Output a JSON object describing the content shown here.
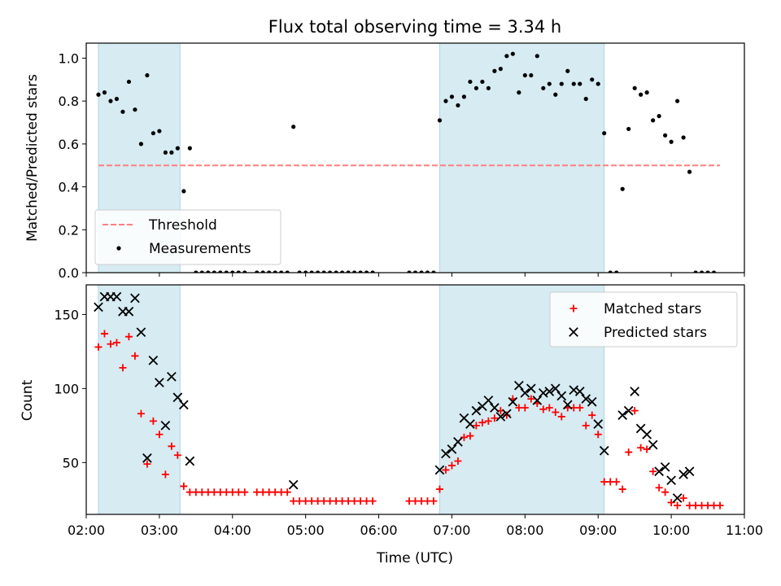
{
  "chart_data": [
    {
      "type": "scatter",
      "title": "Flux total observing time = 3.34 h",
      "xlabel": "",
      "ylabel": "Matched/Predicted stars",
      "xlim": [
        "02:00",
        "11:00"
      ],
      "ylim": [
        0,
        1.07
      ],
      "yticks": [
        0.0,
        0.2,
        0.4,
        0.6,
        0.8,
        1.0
      ],
      "ytick_labels": [
        "0.0",
        "0.2",
        "0.4",
        "0.6",
        "0.8",
        "1.0"
      ],
      "shaded_intervals": [
        [
          "02:10",
          "03:17"
        ],
        [
          "06:50",
          "09:05"
        ]
      ],
      "threshold": {
        "name": "Threshold",
        "y": 0.5,
        "x_range": [
          "02:10",
          "10:40"
        ],
        "color": "#ff7f7f"
      },
      "series": [
        {
          "name": "Measurements",
          "marker": "dot",
          "color": "#000000",
          "points": [
            [
              "02:10",
              0.83
            ],
            [
              "02:15",
              0.84
            ],
            [
              "02:20",
              0.8
            ],
            [
              "02:25",
              0.81
            ],
            [
              "02:30",
              0.75
            ],
            [
              "02:35",
              0.89
            ],
            [
              "02:40",
              0.76
            ],
            [
              "02:45",
              0.6
            ],
            [
              "02:50",
              0.92
            ],
            [
              "02:55",
              0.65
            ],
            [
              "03:00",
              0.66
            ],
            [
              "03:05",
              0.56
            ],
            [
              "03:10",
              0.56
            ],
            [
              "03:15",
              0.58
            ],
            [
              "03:20",
              0.38
            ],
            [
              "03:25",
              0.58
            ],
            [
              "03:30",
              0.0
            ],
            [
              "03:35",
              0.0
            ],
            [
              "03:40",
              0.0
            ],
            [
              "03:45",
              0.0
            ],
            [
              "03:50",
              0.0
            ],
            [
              "03:55",
              0.0
            ],
            [
              "04:00",
              0.0
            ],
            [
              "04:05",
              0.0
            ],
            [
              "04:10",
              0.0
            ],
            [
              "04:20",
              0.0
            ],
            [
              "04:25",
              0.0
            ],
            [
              "04:30",
              0.0
            ],
            [
              "04:35",
              0.0
            ],
            [
              "04:40",
              0.0
            ],
            [
              "04:45",
              0.0
            ],
            [
              "04:50",
              0.68
            ],
            [
              "04:55",
              0.0
            ],
            [
              "05:00",
              0.0
            ],
            [
              "05:05",
              0.0
            ],
            [
              "05:10",
              0.0
            ],
            [
              "05:15",
              0.0
            ],
            [
              "05:20",
              0.0
            ],
            [
              "05:25",
              0.0
            ],
            [
              "05:30",
              0.0
            ],
            [
              "05:35",
              0.0
            ],
            [
              "05:40",
              0.0
            ],
            [
              "05:45",
              0.0
            ],
            [
              "05:50",
              0.0
            ],
            [
              "05:55",
              0.0
            ],
            [
              "06:25",
              0.0
            ],
            [
              "06:30",
              0.0
            ],
            [
              "06:35",
              0.0
            ],
            [
              "06:40",
              0.0
            ],
            [
              "06:45",
              0.0
            ],
            [
              "06:50",
              0.71
            ],
            [
              "06:55",
              0.8
            ],
            [
              "07:00",
              0.82
            ],
            [
              "07:05",
              0.78
            ],
            [
              "07:10",
              0.82
            ],
            [
              "07:15",
              0.89
            ],
            [
              "07:20",
              0.86
            ],
            [
              "07:25",
              0.89
            ],
            [
              "07:30",
              0.86
            ],
            [
              "07:35",
              0.94
            ],
            [
              "07:40",
              0.95
            ],
            [
              "07:45",
              1.01
            ],
            [
              "07:50",
              1.02
            ],
            [
              "07:55",
              0.84
            ],
            [
              "08:00",
              0.92
            ],
            [
              "08:05",
              0.92
            ],
            [
              "08:10",
              1.01
            ],
            [
              "08:15",
              0.86
            ],
            [
              "08:20",
              0.88
            ],
            [
              "08:25",
              0.83
            ],
            [
              "08:30",
              0.88
            ],
            [
              "08:35",
              0.94
            ],
            [
              "08:40",
              0.88
            ],
            [
              "08:45",
              0.88
            ],
            [
              "08:50",
              0.81
            ],
            [
              "08:55",
              0.9
            ],
            [
              "09:00",
              0.88
            ],
            [
              "09:05",
              0.65
            ],
            [
              "09:10",
              0.0
            ],
            [
              "09:15",
              0.0
            ],
            [
              "09:20",
              0.39
            ],
            [
              "09:25",
              0.67
            ],
            [
              "09:30",
              0.86
            ],
            [
              "09:35",
              0.83
            ],
            [
              "09:40",
              0.84
            ],
            [
              "09:45",
              0.71
            ],
            [
              "09:50",
              0.73
            ],
            [
              "09:55",
              0.64
            ],
            [
              "10:00",
              0.61
            ],
            [
              "10:05",
              0.8
            ],
            [
              "10:10",
              0.63
            ],
            [
              "10:15",
              0.47
            ],
            [
              "10:20",
              0.0
            ],
            [
              "10:25",
              0.0
            ],
            [
              "10:30",
              0.0
            ],
            [
              "10:35",
              0.0
            ]
          ]
        }
      ],
      "legend": {
        "position": "lower-left",
        "entries": [
          "Threshold",
          "Measurements"
        ]
      }
    },
    {
      "type": "scatter",
      "title": "",
      "xlabel": "Time (UTC)",
      "ylabel": "Count",
      "xlim": [
        "02:00",
        "11:00"
      ],
      "ylim": [
        15,
        170
      ],
      "xticks": [
        "02:00",
        "03:00",
        "04:00",
        "05:00",
        "06:00",
        "07:00",
        "08:00",
        "09:00",
        "10:00",
        "11:00"
      ],
      "yticks": [
        50,
        100,
        150
      ],
      "ytick_labels": [
        "50",
        "100",
        "150"
      ],
      "shaded_intervals": [
        [
          "02:10",
          "03:17"
        ],
        [
          "06:50",
          "09:05"
        ]
      ],
      "series": [
        {
          "name": "Matched stars",
          "marker": "plus",
          "color": "#ff0000",
          "points": [
            [
              "02:10",
              128
            ],
            [
              "02:15",
              137
            ],
            [
              "02:20",
              130
            ],
            [
              "02:25",
              131
            ],
            [
              "02:30",
              114
            ],
            [
              "02:35",
              135
            ],
            [
              "02:40",
              122
            ],
            [
              "02:45",
              83
            ],
            [
              "02:50",
              49
            ],
            [
              "02:55",
              78
            ],
            [
              "03:00",
              69
            ],
            [
              "03:05",
              42
            ],
            [
              "03:10",
              61
            ],
            [
              "03:15",
              55
            ],
            [
              "03:20",
              34
            ],
            [
              "03:25",
              30
            ],
            [
              "03:30",
              30
            ],
            [
              "03:35",
              30
            ],
            [
              "03:40",
              30
            ],
            [
              "03:45",
              30
            ],
            [
              "03:50",
              30
            ],
            [
              "03:55",
              30
            ],
            [
              "04:00",
              30
            ],
            [
              "04:05",
              30
            ],
            [
              "04:10",
              30
            ],
            [
              "04:20",
              30
            ],
            [
              "04:25",
              30
            ],
            [
              "04:30",
              30
            ],
            [
              "04:35",
              30
            ],
            [
              "04:40",
              30
            ],
            [
              "04:45",
              30
            ],
            [
              "04:50",
              24
            ],
            [
              "04:55",
              24
            ],
            [
              "05:00",
              24
            ],
            [
              "05:05",
              24
            ],
            [
              "05:10",
              24
            ],
            [
              "05:15",
              24
            ],
            [
              "05:20",
              24
            ],
            [
              "05:25",
              24
            ],
            [
              "05:30",
              24
            ],
            [
              "05:35",
              24
            ],
            [
              "05:40",
              24
            ],
            [
              "05:45",
              24
            ],
            [
              "05:50",
              24
            ],
            [
              "05:55",
              24
            ],
            [
              "06:25",
              24
            ],
            [
              "06:30",
              24
            ],
            [
              "06:35",
              24
            ],
            [
              "06:40",
              24
            ],
            [
              "06:45",
              24
            ],
            [
              "06:50",
              32
            ],
            [
              "06:55",
              45
            ],
            [
              "07:00",
              48
            ],
            [
              "07:05",
              51
            ],
            [
              "07:10",
              67
            ],
            [
              "07:15",
              68
            ],
            [
              "07:20",
              75
            ],
            [
              "07:25",
              77
            ],
            [
              "07:30",
              78
            ],
            [
              "07:35",
              80
            ],
            [
              "07:40",
              85
            ],
            [
              "07:45",
              82
            ],
            [
              "07:50",
              93
            ],
            [
              "07:55",
              87
            ],
            [
              "08:00",
              87
            ],
            [
              "08:05",
              93
            ],
            [
              "08:10",
              90
            ],
            [
              "08:15",
              86
            ],
            [
              "08:20",
              87
            ],
            [
              "08:25",
              84
            ],
            [
              "08:30",
              81
            ],
            [
              "08:35",
              87
            ],
            [
              "08:40",
              87
            ],
            [
              "08:45",
              87
            ],
            [
              "08:50",
              75
            ],
            [
              "08:55",
              82
            ],
            [
              "09:00",
              69
            ],
            [
              "09:05",
              37
            ],
            [
              "09:10",
              37
            ],
            [
              "09:15",
              37
            ],
            [
              "09:20",
              32
            ],
            [
              "09:25",
              57
            ],
            [
              "09:30",
              85
            ],
            [
              "09:35",
              60
            ],
            [
              "09:40",
              59
            ],
            [
              "09:45",
              44
            ],
            [
              "09:50",
              33
            ],
            [
              "09:55",
              30
            ],
            [
              "10:00",
              23
            ],
            [
              "10:05",
              21
            ],
            [
              "10:10",
              26
            ],
            [
              "10:15",
              21
            ],
            [
              "10:20",
              21
            ],
            [
              "10:25",
              21
            ],
            [
              "10:30",
              21
            ],
            [
              "10:35",
              21
            ],
            [
              "10:40",
              21
            ]
          ]
        },
        {
          "name": "Predicted stars",
          "marker": "x",
          "color": "#000000",
          "points": [
            [
              "02:10",
              155
            ],
            [
              "02:15",
              162
            ],
            [
              "02:20",
              162
            ],
            [
              "02:25",
              162
            ],
            [
              "02:30",
              152
            ],
            [
              "02:35",
              152
            ],
            [
              "02:40",
              161
            ],
            [
              "02:45",
              138
            ],
            [
              "02:50",
              53
            ],
            [
              "02:55",
              119
            ],
            [
              "03:00",
              104
            ],
            [
              "03:05",
              75
            ],
            [
              "03:10",
              108
            ],
            [
              "03:15",
              94
            ],
            [
              "03:20",
              89
            ],
            [
              "03:25",
              51
            ],
            [
              "04:50",
              35
            ],
            [
              "06:50",
              45
            ],
            [
              "06:55",
              56
            ],
            [
              "07:00",
              59
            ],
            [
              "07:05",
              64
            ],
            [
              "07:10",
              80
            ],
            [
              "07:15",
              76
            ],
            [
              "07:20",
              85
            ],
            [
              "07:25",
              88
            ],
            [
              "07:30",
              92
            ],
            [
              "07:35",
              87
            ],
            [
              "07:40",
              81
            ],
            [
              "07:45",
              83
            ],
            [
              "07:50",
              91
            ],
            [
              "07:55",
              102
            ],
            [
              "08:00",
              97
            ],
            [
              "08:05",
              100
            ],
            [
              "08:10",
              92
            ],
            [
              "08:15",
              97
            ],
            [
              "08:20",
              98
            ],
            [
              "08:25",
              100
            ],
            [
              "08:30",
              95
            ],
            [
              "08:35",
              89
            ],
            [
              "08:40",
              99
            ],
            [
              "08:45",
              98
            ],
            [
              "08:50",
              93
            ],
            [
              "08:55",
              91
            ],
            [
              "09:00",
              76
            ],
            [
              "09:05",
              58
            ],
            [
              "09:20",
              82
            ],
            [
              "09:25",
              85
            ],
            [
              "09:30",
              98
            ],
            [
              "09:35",
              73
            ],
            [
              "09:40",
              69
            ],
            [
              "09:45",
              62
            ],
            [
              "09:50",
              44
            ],
            [
              "09:55",
              47
            ],
            [
              "10:00",
              38
            ],
            [
              "10:05",
              26
            ],
            [
              "10:10",
              42
            ],
            [
              "10:15",
              44
            ]
          ]
        }
      ],
      "legend": {
        "position": "top-right",
        "entries": [
          "Matched stars",
          "Predicted stars"
        ]
      }
    }
  ]
}
